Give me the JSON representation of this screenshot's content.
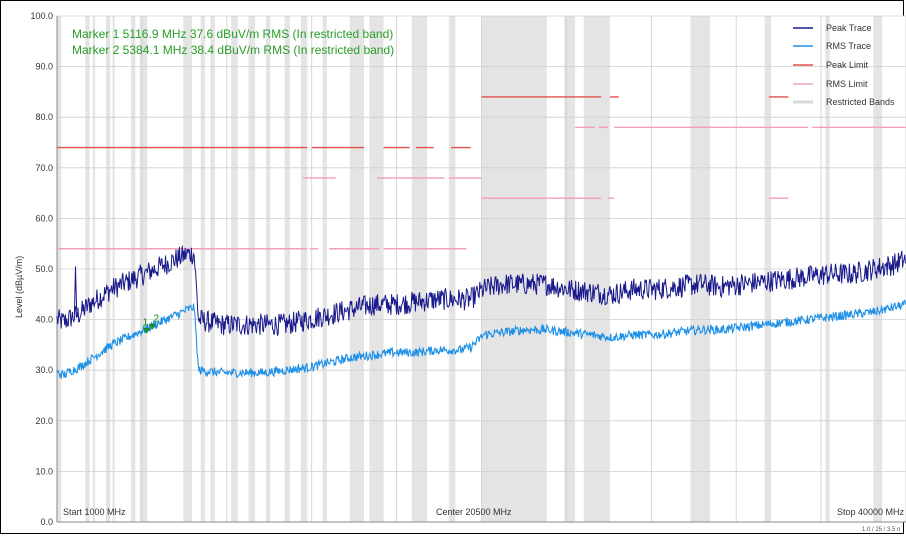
{
  "chart_data": {
    "type": "line",
    "ylabel": "Level (dBµV/m)",
    "ylim": [
      0,
      100
    ],
    "xlim_mhz": [
      1000,
      40000
    ],
    "y_ticks": [
      "0.0",
      "10.0",
      "20.0",
      "30.0",
      "40.0",
      "50.0",
      "60.0",
      "70.0",
      "80.0",
      "90.0",
      "100.0"
    ],
    "x_labels": {
      "start": "Start 1000 MHz",
      "center": "Center 20500 MHz",
      "stop": "Stop 40000 MHz"
    },
    "markers": [
      {
        "id": "1",
        "text": "Marker 1 5116.9 MHz 37.6 dBuV/m RMS (In restricted band)",
        "freq": 5116.9,
        "level": 37.6
      },
      {
        "id": "2",
        "text": "Marker 2 5384.1 MHz 38.4 dBuV/m RMS (In restricted band)",
        "freq": 5384.1,
        "level": 38.4
      }
    ],
    "legend": [
      {
        "label": "Peak Trace",
        "color": "#1a1a8c"
      },
      {
        "label": "RMS Trace",
        "color": "#1e90e6"
      },
      {
        "label": "Peak Limit",
        "color": "#e0504a"
      },
      {
        "label": "RMS Limit",
        "color": "#f2a0b4"
      },
      {
        "label": "Restricted Bands",
        "color": "#d8d8d8"
      }
    ],
    "legend_position": "top-right",
    "grid": true,
    "footer": "1.0 / 25 / 3.5 n",
    "restricted_bands_mhz": [
      [
        1000,
        1200
      ],
      [
        2300,
        2500
      ],
      [
        2650,
        2750
      ],
      [
        3250,
        3450
      ],
      [
        3550,
        3650
      ],
      [
        4400,
        4600
      ],
      [
        4800,
        5150
      ],
      [
        6800,
        7200
      ],
      [
        7600,
        7800
      ],
      [
        8050,
        8250
      ],
      [
        9000,
        9300
      ],
      [
        9800,
        10100
      ],
      [
        10600,
        10800
      ],
      [
        11450,
        11700
      ],
      [
        12200,
        12500
      ],
      [
        13200,
        13400
      ],
      [
        14450,
        15100
      ],
      [
        15350,
        16000
      ],
      [
        17300,
        18000
      ],
      [
        19000,
        19300
      ],
      [
        20500,
        23500
      ],
      [
        24300,
        24800
      ],
      [
        25200,
        26400
      ],
      [
        30100,
        31000
      ],
      [
        33500,
        33800
      ],
      [
        36300,
        36500
      ],
      [
        38500,
        38900
      ]
    ],
    "series": [
      {
        "name": "Peak Trace",
        "color": "#1a1a8c",
        "x": [
          1000,
          1300,
          1700,
          2000,
          2500,
          3000,
          3500,
          4000,
          4500,
          5000,
          5500,
          6000,
          6500,
          7000,
          7300,
          7500,
          8500,
          9500,
          10500,
          11500,
          12500,
          13500,
          14500,
          15500,
          16500,
          17500,
          18500,
          19500,
          20000,
          20600,
          21500,
          22500,
          23500,
          24500,
          25500,
          26500,
          27500,
          28500,
          29500,
          30500,
          31500,
          32500,
          33500,
          34500,
          35500,
          36500,
          37500,
          38500,
          39500,
          40000
        ],
        "y": [
          40,
          39.5,
          40.5,
          41,
          43,
          44.5,
          46,
          47,
          48,
          49,
          50,
          51,
          52,
          53,
          53,
          40,
          39,
          39,
          39,
          39,
          40,
          41,
          42,
          43,
          43,
          43.5,
          44,
          44,
          44,
          46,
          47,
          47,
          47,
          46,
          45.5,
          45,
          46,
          46,
          46.5,
          47,
          46.5,
          47,
          47.5,
          48,
          48.5,
          49,
          49,
          50,
          51,
          52
        ]
      },
      {
        "name": "RMS Trace",
        "color": "#1e90e6",
        "x": [
          1000,
          1300,
          1700,
          2000,
          2500,
          3000,
          3500,
          4000,
          4500,
          5000,
          5500,
          6000,
          6500,
          7000,
          7300,
          7500,
          8500,
          9500,
          10500,
          11500,
          12500,
          13500,
          14500,
          15500,
          16500,
          17500,
          18500,
          19500,
          20000,
          20600,
          21500,
          22500,
          23500,
          24500,
          25500,
          26500,
          27500,
          28500,
          29500,
          30500,
          31500,
          32500,
          33500,
          34500,
          35500,
          36500,
          37500,
          38500,
          39500,
          40000
        ],
        "y": [
          29.5,
          29,
          30,
          30.5,
          32,
          33.5,
          35,
          36,
          37,
          38,
          39,
          40,
          41,
          42,
          42.5,
          30,
          29.5,
          29.5,
          29.5,
          30,
          30.5,
          31.5,
          32.5,
          33,
          33.5,
          33.5,
          34,
          34,
          34.5,
          37,
          37.5,
          38,
          38,
          37.5,
          37,
          36.5,
          37,
          37,
          37.5,
          38,
          38,
          38.5,
          39,
          39.5,
          40,
          40.5,
          41,
          41.5,
          42.5,
          43
        ]
      },
      {
        "name": "Peak Limit",
        "color": "#e0504a",
        "segments": [
          {
            "x": [
              1000,
              12500
            ],
            "y": 74
          },
          {
            "x": [
              12700,
              15100
            ],
            "y": 74
          },
          {
            "x": [
              16000,
              17200
            ],
            "y": 74
          },
          {
            "x": [
              17500,
              18300
            ],
            "y": 74
          },
          {
            "x": [
              19100,
              20000
            ],
            "y": 74
          },
          {
            "x": [
              20500,
              26000
            ],
            "y": 84
          },
          {
            "x": [
              26400,
              26800
            ],
            "y": 84
          },
          {
            "x": [
              33700,
              34600
            ],
            "y": 84
          }
        ]
      },
      {
        "name": "RMS Limit",
        "color": "#f2a0b4",
        "segments": [
          {
            "x": [
              1000,
              12500
            ],
            "y": 54
          },
          {
            "x": [
              12600,
              13000
            ],
            "y": 54
          },
          {
            "x": [
              13500,
              15800
            ],
            "y": 54
          },
          {
            "x": [
              16000,
              19800
            ],
            "y": 54
          },
          {
            "x": [
              12300,
              13800
            ],
            "y": 68
          },
          {
            "x": [
              15700,
              18800
            ],
            "y": 68
          },
          {
            "x": [
              19000,
              20500
            ],
            "y": 68
          },
          {
            "x": [
              20500,
              26000
            ],
            "y": 64
          },
          {
            "x": [
              26300,
              26600
            ],
            "y": 64
          },
          {
            "x": [
              33700,
              34600
            ],
            "y": 64
          },
          {
            "x": [
              24800,
              25700
            ],
            "y": 78
          },
          {
            "x": [
              25900,
              26300
            ],
            "y": 78
          },
          {
            "x": [
              26600,
              35500
            ],
            "y": 78
          },
          {
            "x": [
              35700,
              40000
            ],
            "y": 78
          }
        ]
      }
    ]
  }
}
